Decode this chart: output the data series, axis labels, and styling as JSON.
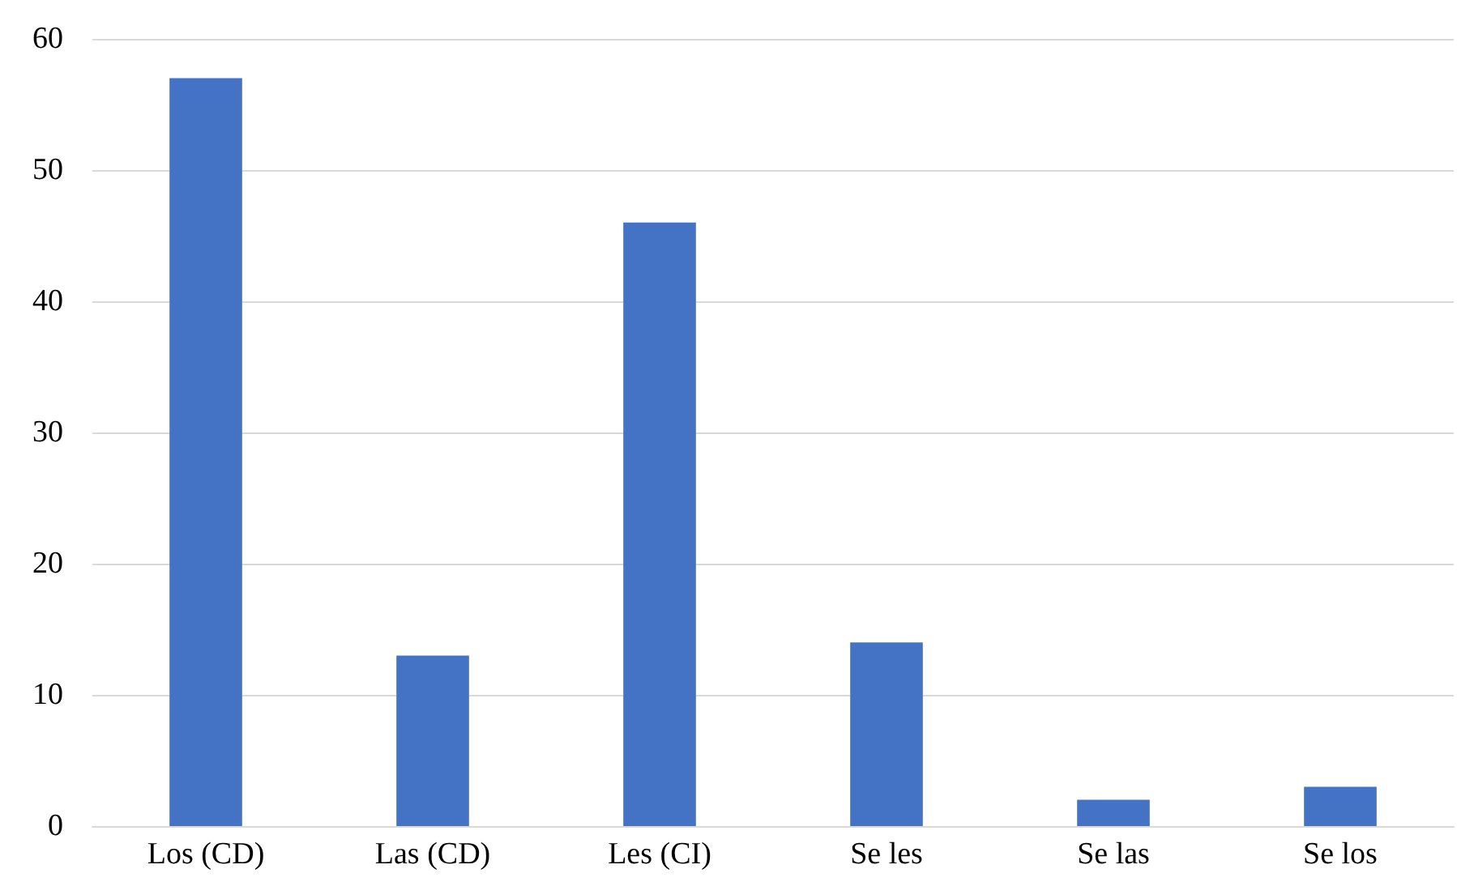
{
  "chart_data": {
    "type": "bar",
    "categories": [
      "Los (CD)",
      "Las (CD)",
      "Les (CI)",
      "Se les",
      "Se las",
      "Se los"
    ],
    "values": [
      57,
      13,
      46,
      14,
      2,
      3
    ],
    "color": "#4472c4",
    "ylim": [
      0,
      60
    ],
    "yticks": [
      0,
      10,
      20,
      30,
      40,
      50,
      60
    ],
    "grid": "y"
  }
}
